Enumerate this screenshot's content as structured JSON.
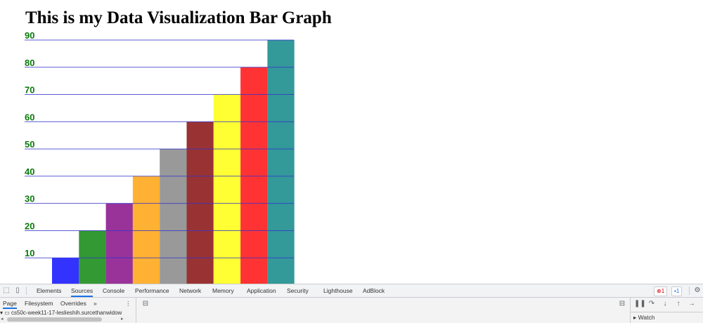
{
  "page": {
    "title": "This is my Data Visualization Bar Graph"
  },
  "chart_data": {
    "type": "bar",
    "values": [
      20,
      30,
      40,
      50,
      60,
      70,
      80,
      90,
      100
    ],
    "colors": [
      "#3333ff",
      "#339933",
      "#993399",
      "#ffb133",
      "#999999",
      "#993333",
      "#ffff33",
      "#ff3333",
      "#339999"
    ],
    "y_tick_labels": [
      "10",
      "20",
      "30",
      "40",
      "50",
      "60",
      "70",
      "80",
      "90"
    ],
    "ylim": [
      10,
      100
    ],
    "grid": true,
    "gridline_color": "#3333cc",
    "tick_label_color": "#0a7a0a"
  },
  "devtools": {
    "tabs": [
      "Elements",
      "Sources",
      "Console",
      "Performance",
      "Network",
      "Memory",
      "Application",
      "Security",
      "Lighthouse",
      "AdBlock"
    ],
    "active_tab": "Sources",
    "error_count": "1",
    "message_count": "1",
    "navigator_tabs": [
      "Page",
      "Filesystem",
      "Overrides"
    ],
    "more_label": "»",
    "file_path": "cs50c-week11-17-leslieshih.surcethanwidow",
    "watch_label": "Watch"
  }
}
